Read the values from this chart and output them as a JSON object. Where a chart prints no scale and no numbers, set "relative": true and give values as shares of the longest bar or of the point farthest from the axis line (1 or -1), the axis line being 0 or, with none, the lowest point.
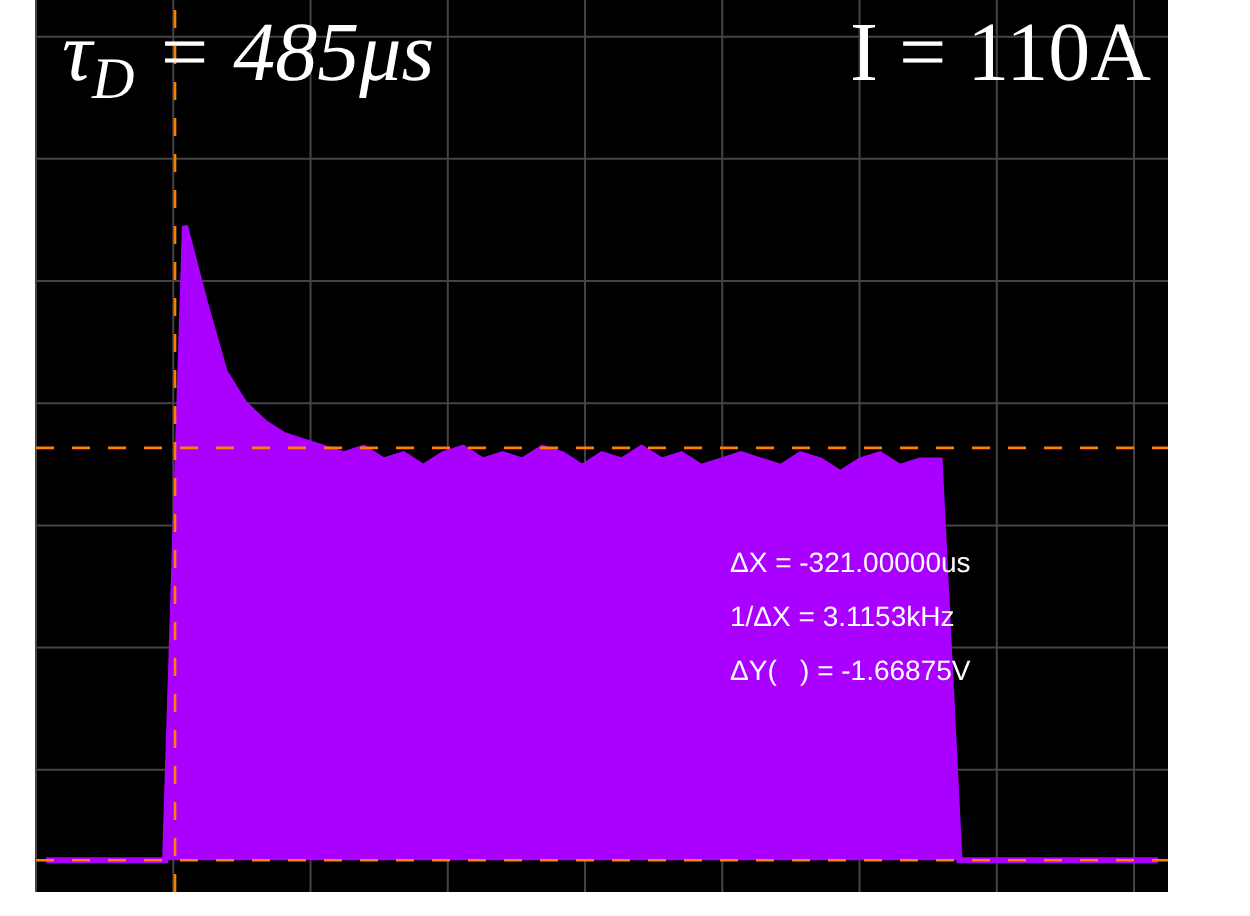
{
  "chart_data": {
    "type": "area",
    "relative": true,
    "grid": true,
    "categories": [
      null,
      null,
      null,
      null,
      null,
      null,
      null,
      null,
      null,
      null,
      null,
      null,
      null,
      null,
      null,
      null,
      null,
      null,
      null,
      null,
      null,
      null,
      null,
      null,
      null,
      null,
      null,
      null,
      null,
      null,
      null,
      null,
      null,
      null,
      null,
      null,
      null,
      null,
      null,
      null,
      null,
      null,
      null,
      null,
      null,
      null,
      null,
      null,
      null,
      null,
      null,
      null,
      null,
      null,
      null,
      null,
      null
    ],
    "series": [
      {
        "color": "#aa00ff",
        "values": [
          0,
          0,
          0,
          0,
          0,
          0,
          0,
          1.0,
          0.88,
          0.77,
          0.72,
          0.69,
          0.67,
          0.66,
          0.65,
          0.64,
          0.65,
          0.63,
          0.64,
          0.62,
          0.64,
          0.65,
          0.63,
          0.64,
          0.63,
          0.65,
          0.64,
          0.62,
          0.64,
          0.63,
          0.65,
          0.63,
          0.64,
          0.62,
          0.63,
          0.64,
          0.63,
          0.62,
          0.64,
          0.63,
          0.61,
          0.63,
          0.64,
          0.62,
          0.63,
          0.63,
          0,
          0,
          0,
          0,
          0,
          0,
          0,
          0,
          0,
          0,
          0
        ]
      }
    ],
    "ref_lines": [
      {
        "axis": "y",
        "value": 0.65,
        "color": "#ff8000",
        "line_style": "dashed"
      },
      {
        "axis": "y",
        "value": 0,
        "color": "#ff8000",
        "line_style": "dashed"
      }
    ],
    "annotations": [
      "τ$_{D}$ = 485μs",
      "I = 110A",
      "ΔX = -321.00000us",
      "1/ΔX = 3.1153kHz",
      "ΔY(   ) = -1.66875V"
    ]
  }
}
